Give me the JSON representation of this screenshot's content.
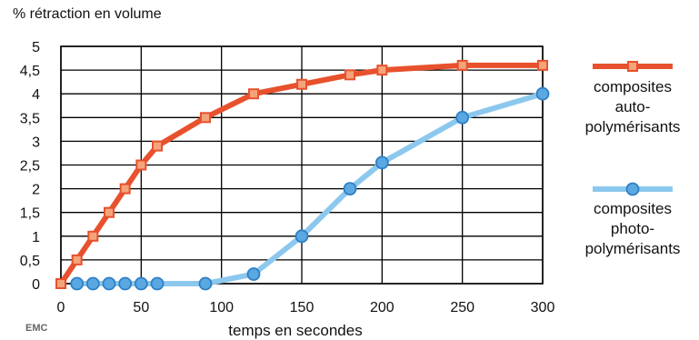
{
  "chart_data": {
    "type": "line",
    "title": "",
    "ylabel": "% rétraction en volume",
    "xlabel": "temps en secondes",
    "xlim": [
      0,
      300
    ],
    "ylim": [
      0,
      5
    ],
    "xticks": [
      "0",
      "50",
      "100",
      "150",
      "200",
      "250",
      "300"
    ],
    "yticks": [
      "0",
      "0,5",
      "1",
      "1,5",
      "2",
      "2,5",
      "3",
      "3,5",
      "4",
      "4,5",
      "5"
    ],
    "grid": true,
    "legend_position": "right",
    "series": [
      {
        "name_lines": [
          "composites",
          "auto-",
          "polymérisants"
        ],
        "color": "#e8512d",
        "marker": "square",
        "x": [
          0,
          10,
          20,
          30,
          40,
          50,
          60,
          90,
          120,
          150,
          180,
          200,
          250,
          300
        ],
        "y": [
          0,
          0.5,
          1,
          1.5,
          2,
          2.5,
          2.9,
          3.5,
          4,
          4.2,
          4.4,
          4.5,
          4.6,
          4.6
        ]
      },
      {
        "name_lines": [
          "composites",
          "photo-",
          "polymérisants"
        ],
        "color": "#8cc8ee",
        "marker": "circle",
        "x": [
          10,
          20,
          30,
          40,
          50,
          60,
          90,
          120,
          150,
          180,
          200,
          250,
          300
        ],
        "y": [
          0,
          0,
          0,
          0,
          0,
          0,
          0,
          0.2,
          1,
          2,
          2.55,
          3.5,
          4
        ]
      }
    ]
  },
  "watermark_text": "EMC"
}
